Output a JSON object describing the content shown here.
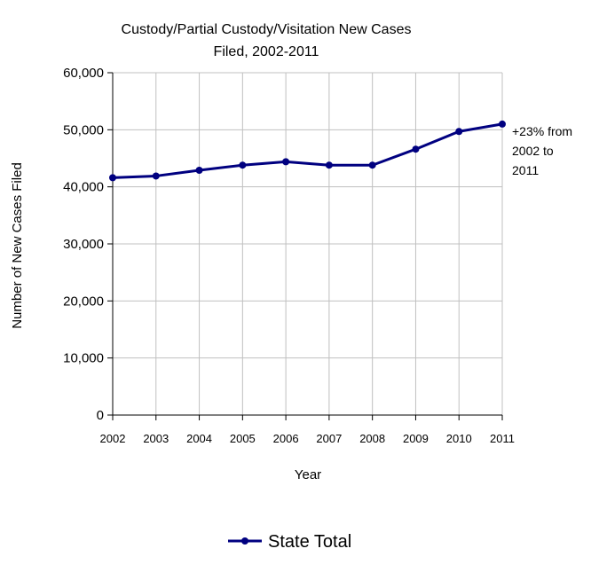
{
  "chart_data": {
    "type": "line",
    "title_lines": [
      "Custody/Partial Custody/Visitation New  Cases",
      "Filed, 2002-2011"
    ],
    "xlabel": "Year",
    "ylabel": "Number of New Cases Filed",
    "categories": [
      "2002",
      "2003",
      "2004",
      "2005",
      "2006",
      "2007",
      "2008",
      "2009",
      "2010",
      "2011"
    ],
    "series": [
      {
        "name": "State Total",
        "values": [
          41600,
          41900,
          42900,
          43800,
          44400,
          43800,
          43800,
          46600,
          49700,
          51000
        ]
      }
    ],
    "ylim": [
      0,
      60000
    ],
    "yticks": [
      0,
      10000,
      20000,
      30000,
      40000,
      50000,
      60000
    ],
    "ytick_labels": [
      "0",
      "10,000",
      "20,000",
      "30,000",
      "40,000",
      "50,000",
      "60,000"
    ],
    "grid": true,
    "legend_position": "bottom",
    "annotation_lines": [
      "+23% from",
      "2002 to",
      "2011"
    ],
    "colors": {
      "series": "#000080",
      "grid": "#c0c0c0",
      "axis": "#000000"
    }
  }
}
